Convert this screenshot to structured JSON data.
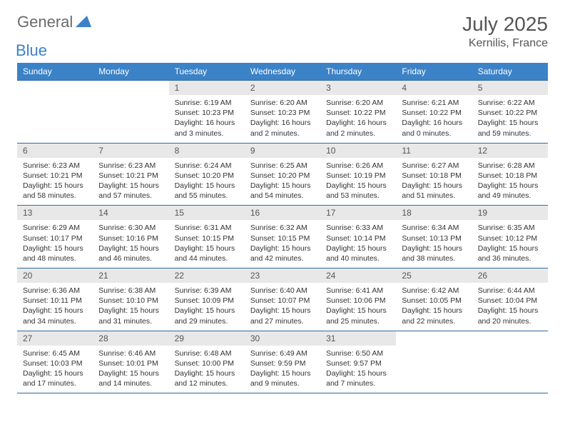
{
  "logo": {
    "text1": "General",
    "text2": "Blue"
  },
  "title": "July 2025",
  "location": "Kernilis, France",
  "colors": {
    "header_bg": "#3b82c7",
    "header_text": "#ffffff",
    "daynum_bg": "#e8e8e8",
    "border": "#2f6aa3",
    "logo_gray": "#6b6b6b",
    "logo_blue": "#3b82c7",
    "title_gray": "#555555"
  },
  "day_headers": [
    "Sunday",
    "Monday",
    "Tuesday",
    "Wednesday",
    "Thursday",
    "Friday",
    "Saturday"
  ],
  "weeks": [
    [
      null,
      null,
      {
        "n": "1",
        "sr": "6:19 AM",
        "ss": "10:23 PM",
        "dl": "16 hours and 3 minutes."
      },
      {
        "n": "2",
        "sr": "6:20 AM",
        "ss": "10:23 PM",
        "dl": "16 hours and 2 minutes."
      },
      {
        "n": "3",
        "sr": "6:20 AM",
        "ss": "10:22 PM",
        "dl": "16 hours and 2 minutes."
      },
      {
        "n": "4",
        "sr": "6:21 AM",
        "ss": "10:22 PM",
        "dl": "16 hours and 0 minutes."
      },
      {
        "n": "5",
        "sr": "6:22 AM",
        "ss": "10:22 PM",
        "dl": "15 hours and 59 minutes."
      }
    ],
    [
      {
        "n": "6",
        "sr": "6:23 AM",
        "ss": "10:21 PM",
        "dl": "15 hours and 58 minutes."
      },
      {
        "n": "7",
        "sr": "6:23 AM",
        "ss": "10:21 PM",
        "dl": "15 hours and 57 minutes."
      },
      {
        "n": "8",
        "sr": "6:24 AM",
        "ss": "10:20 PM",
        "dl": "15 hours and 55 minutes."
      },
      {
        "n": "9",
        "sr": "6:25 AM",
        "ss": "10:20 PM",
        "dl": "15 hours and 54 minutes."
      },
      {
        "n": "10",
        "sr": "6:26 AM",
        "ss": "10:19 PM",
        "dl": "15 hours and 53 minutes."
      },
      {
        "n": "11",
        "sr": "6:27 AM",
        "ss": "10:18 PM",
        "dl": "15 hours and 51 minutes."
      },
      {
        "n": "12",
        "sr": "6:28 AM",
        "ss": "10:18 PM",
        "dl": "15 hours and 49 minutes."
      }
    ],
    [
      {
        "n": "13",
        "sr": "6:29 AM",
        "ss": "10:17 PM",
        "dl": "15 hours and 48 minutes."
      },
      {
        "n": "14",
        "sr": "6:30 AM",
        "ss": "10:16 PM",
        "dl": "15 hours and 46 minutes."
      },
      {
        "n": "15",
        "sr": "6:31 AM",
        "ss": "10:15 PM",
        "dl": "15 hours and 44 minutes."
      },
      {
        "n": "16",
        "sr": "6:32 AM",
        "ss": "10:15 PM",
        "dl": "15 hours and 42 minutes."
      },
      {
        "n": "17",
        "sr": "6:33 AM",
        "ss": "10:14 PM",
        "dl": "15 hours and 40 minutes."
      },
      {
        "n": "18",
        "sr": "6:34 AM",
        "ss": "10:13 PM",
        "dl": "15 hours and 38 minutes."
      },
      {
        "n": "19",
        "sr": "6:35 AM",
        "ss": "10:12 PM",
        "dl": "15 hours and 36 minutes."
      }
    ],
    [
      {
        "n": "20",
        "sr": "6:36 AM",
        "ss": "10:11 PM",
        "dl": "15 hours and 34 minutes."
      },
      {
        "n": "21",
        "sr": "6:38 AM",
        "ss": "10:10 PM",
        "dl": "15 hours and 31 minutes."
      },
      {
        "n": "22",
        "sr": "6:39 AM",
        "ss": "10:09 PM",
        "dl": "15 hours and 29 minutes."
      },
      {
        "n": "23",
        "sr": "6:40 AM",
        "ss": "10:07 PM",
        "dl": "15 hours and 27 minutes."
      },
      {
        "n": "24",
        "sr": "6:41 AM",
        "ss": "10:06 PM",
        "dl": "15 hours and 25 minutes."
      },
      {
        "n": "25",
        "sr": "6:42 AM",
        "ss": "10:05 PM",
        "dl": "15 hours and 22 minutes."
      },
      {
        "n": "26",
        "sr": "6:44 AM",
        "ss": "10:04 PM",
        "dl": "15 hours and 20 minutes."
      }
    ],
    [
      {
        "n": "27",
        "sr": "6:45 AM",
        "ss": "10:03 PM",
        "dl": "15 hours and 17 minutes."
      },
      {
        "n": "28",
        "sr": "6:46 AM",
        "ss": "10:01 PM",
        "dl": "15 hours and 14 minutes."
      },
      {
        "n": "29",
        "sr": "6:48 AM",
        "ss": "10:00 PM",
        "dl": "15 hours and 12 minutes."
      },
      {
        "n": "30",
        "sr": "6:49 AM",
        "ss": "9:59 PM",
        "dl": "15 hours and 9 minutes."
      },
      {
        "n": "31",
        "sr": "6:50 AM",
        "ss": "9:57 PM",
        "dl": "15 hours and 7 minutes."
      },
      null,
      null
    ]
  ],
  "labels": {
    "sunrise": "Sunrise:",
    "sunset": "Sunset:",
    "daylight": "Daylight:"
  }
}
